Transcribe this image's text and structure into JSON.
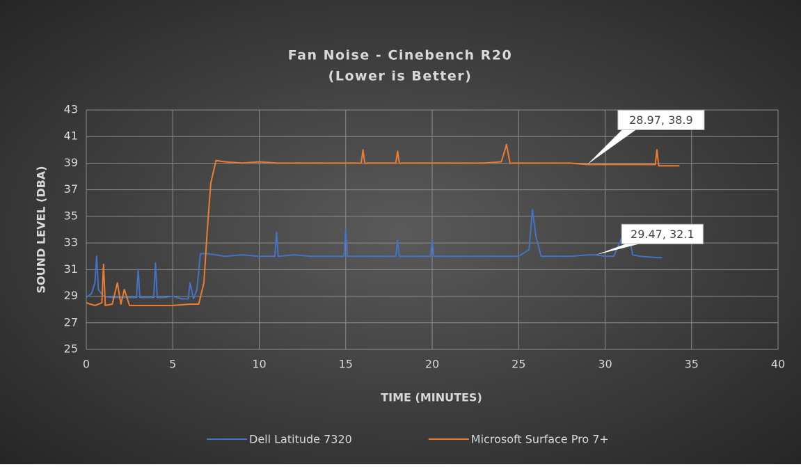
{
  "chart_data": {
    "type": "line",
    "title": "Fan Noise - Cinebench R20",
    "subtitle": "(Lower is Better)",
    "x_label": "TIME (MINUTES)",
    "y_label": "SOUND LEVEL (DBA)",
    "xlim": [
      0,
      40
    ],
    "xticks": [
      0,
      5,
      10,
      15,
      20,
      25,
      30,
      35,
      40
    ],
    "ylim": [
      25,
      43
    ],
    "yticks": [
      25,
      27,
      29,
      31,
      33,
      35,
      37,
      39,
      41,
      43
    ],
    "grid": true,
    "legend": "bottom",
    "series": [
      {
        "name": "Dell Latitude 7320",
        "color": "#4472c4",
        "x": [
          0,
          0.3,
          0.5,
          0.6,
          0.7,
          1,
          1.5,
          2,
          2.5,
          2.9,
          3,
          3.1,
          3.5,
          3.9,
          4,
          4.1,
          4.5,
          5,
          5.5,
          5.9,
          6,
          6.2,
          6.4,
          6.6,
          7,
          7.5,
          8,
          9,
          10,
          10.9,
          11,
          11.1,
          12,
          13,
          14,
          14.9,
          15,
          15.1,
          16,
          17,
          17.9,
          18,
          18.1,
          19,
          19.9,
          20,
          20.1,
          21,
          22,
          23,
          24,
          25,
          25.6,
          25.8,
          26,
          26.3,
          27,
          28,
          29,
          29.47,
          30,
          30.5,
          31,
          31.3,
          31.6,
          32,
          33,
          33.3
        ],
        "values": [
          28.9,
          29.2,
          30,
          32,
          29.5,
          29,
          28.9,
          28.9,
          28.9,
          28.9,
          31,
          28.9,
          28.9,
          28.9,
          31.5,
          28.9,
          28.9,
          29,
          28.8,
          28.8,
          30,
          28.8,
          29.5,
          32.2,
          32.2,
          32.1,
          32,
          32.1,
          32,
          32,
          33.8,
          32,
          32.1,
          32,
          32,
          32,
          34,
          32,
          32,
          32,
          32,
          33.2,
          32,
          32,
          32,
          33.2,
          32,
          32,
          32,
          32,
          32,
          32,
          32.5,
          35.5,
          33.5,
          32,
          32,
          32,
          32.1,
          32.1,
          32,
          32,
          33.5,
          34,
          32.1,
          32,
          31.9,
          31.9
        ]
      },
      {
        "name": "Microsoft Surface Pro 7+",
        "color": "#ed7d31",
        "x": [
          0,
          0.5,
          0.9,
          1,
          1.1,
          1.5,
          1.8,
          2,
          2.2,
          2.5,
          3,
          4,
          5,
          6,
          6.5,
          6.8,
          7,
          7.2,
          7.5,
          8,
          9,
          10,
          11,
          12,
          13,
          14,
          15,
          15.9,
          16,
          16.1,
          17,
          17.9,
          18,
          18.1,
          19,
          20,
          21,
          22,
          23,
          24,
          24.3,
          24.5,
          25,
          26,
          27,
          28,
          28.97,
          30,
          31,
          32,
          32.9,
          33,
          33.1,
          34,
          34.3
        ],
        "values": [
          28.5,
          28.3,
          28.5,
          31.4,
          28.3,
          28.4,
          30,
          28.4,
          29.5,
          28.3,
          28.3,
          28.3,
          28.3,
          28.4,
          28.4,
          30,
          34,
          37.5,
          39.2,
          39.1,
          39,
          39.1,
          39,
          39,
          39,
          39,
          39,
          39,
          40,
          39,
          39,
          39,
          39.9,
          39,
          39,
          39,
          39,
          39,
          39,
          39.1,
          40.4,
          39,
          39,
          39,
          39,
          39,
          38.9,
          38.9,
          38.9,
          38.9,
          38.9,
          40,
          38.8,
          38.8,
          38.8
        ]
      }
    ],
    "annotations": [
      {
        "label": "28.97, 38.9",
        "x": 28.97,
        "y": 38.9
      },
      {
        "label": "29.47, 32.1",
        "x": 29.47,
        "y": 32.1
      }
    ]
  }
}
